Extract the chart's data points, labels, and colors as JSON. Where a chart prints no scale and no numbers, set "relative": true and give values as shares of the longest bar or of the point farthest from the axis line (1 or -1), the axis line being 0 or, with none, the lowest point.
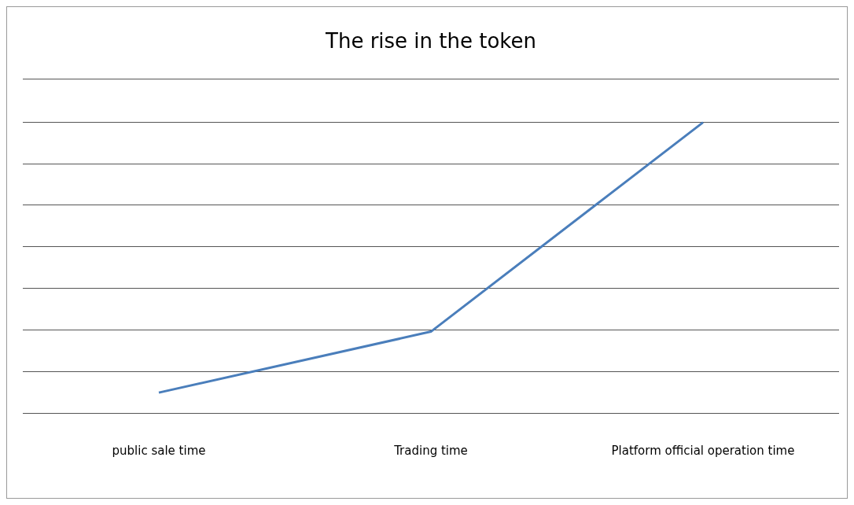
{
  "chart_data": {
    "type": "line",
    "title": "The rise in the token",
    "categories": [
      "public sale time",
      "Trading time",
      "Platform official operation time"
    ],
    "series": [
      {
        "color": "#4a7ebb",
        "values": [
          0.07,
          0.28,
          1
        ]
      }
    ],
    "relative": true,
    "grid": "y",
    "legend": false,
    "marker": "none",
    "line_style": "solid"
  }
}
